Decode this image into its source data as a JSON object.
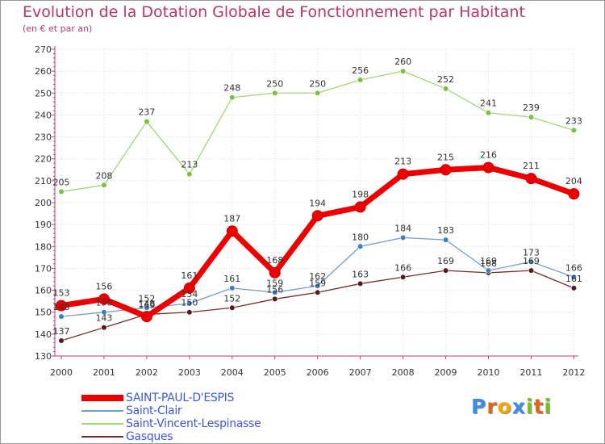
{
  "title": "Evolution de la Dotation Globale de Fonctionnement par Habitant",
  "subtitle": "(en € et par an)",
  "logo": {
    "letters": [
      {
        "ch": "P",
        "color": "#3a8de0"
      },
      {
        "ch": "r",
        "color": "#e0641a"
      },
      {
        "ch": "o",
        "color": "#f0a800"
      },
      {
        "ch": "x",
        "color": "#3a8de0"
      },
      {
        "ch": "i",
        "color": "#78c020"
      },
      {
        "ch": "t",
        "color": "#e0641a"
      },
      {
        "ch": "i",
        "color": "#78c020"
      }
    ]
  },
  "chart_data": {
    "type": "line",
    "title": "Evolution de la Dotation Globale de Fonctionnement par Habitant",
    "subtitle": "(en € et par an)",
    "categories": [
      "2000",
      "2001",
      "2002",
      "2003",
      "2004",
      "2005",
      "2006",
      "2007",
      "2008",
      "2009",
      "2010",
      "2011",
      "2012"
    ],
    "ylim": [
      130,
      270
    ],
    "yticks": [
      "130",
      "140",
      "150",
      "160",
      "170",
      "180",
      "190",
      "200",
      "210",
      "220",
      "230",
      "240",
      "250",
      "260",
      "270"
    ],
    "grid": true,
    "legend_position": "bottom-left",
    "series": [
      {
        "name": "SAINT-PAUL-D'ESPIS",
        "color": "#ee0000",
        "marker": "#dd0000",
        "emphasis": true,
        "values": [
          153,
          156,
          148,
          161,
          187,
          168,
          194,
          198,
          213,
          215,
          216,
          211,
          204
        ]
      },
      {
        "name": "Saint-Clair",
        "color": "#6f9fcf",
        "marker": "#3a7fc0",
        "emphasis": false,
        "values": [
          148,
          150,
          152,
          154,
          161,
          159,
          162,
          180,
          184,
          183,
          169,
          173,
          166
        ]
      },
      {
        "name": "Saint-Vincent-Lespinasse",
        "color": "#9ed870",
        "marker": "#7ac040",
        "emphasis": false,
        "values": [
          205,
          208,
          237,
          213,
          248,
          250,
          250,
          256,
          260,
          252,
          241,
          239,
          233
        ]
      },
      {
        "name": "Gasques",
        "color": "#7a2a2a",
        "marker": "#5a1818",
        "emphasis": false,
        "values": [
          137,
          143,
          149,
          150,
          152,
          156,
          159,
          163,
          166,
          169,
          168,
          169,
          161
        ]
      }
    ],
    "data_labels": [
      {
        "series": 0,
        "labels": [
          "153",
          "156",
          "148",
          "161",
          "187",
          "168",
          "194",
          "198",
          "213",
          "215",
          "216",
          "211",
          "204"
        ]
      },
      {
        "series": 1,
        "labels": [
          "148",
          "150",
          "152",
          "154",
          "161",
          "159",
          "162",
          "180",
          "184",
          "183",
          "169",
          "173",
          "166"
        ]
      },
      {
        "series": 2,
        "labels": [
          "205",
          "208",
          "237",
          "213",
          "248",
          "250",
          "250",
          "256",
          "260",
          "252",
          "241",
          "239",
          "233"
        ]
      },
      {
        "series": 3,
        "labels": [
          "137",
          "143",
          "149",
          "150",
          "152",
          "156",
          "159",
          "163",
          "166",
          "169",
          "168",
          "169",
          "161"
        ]
      }
    ]
  }
}
